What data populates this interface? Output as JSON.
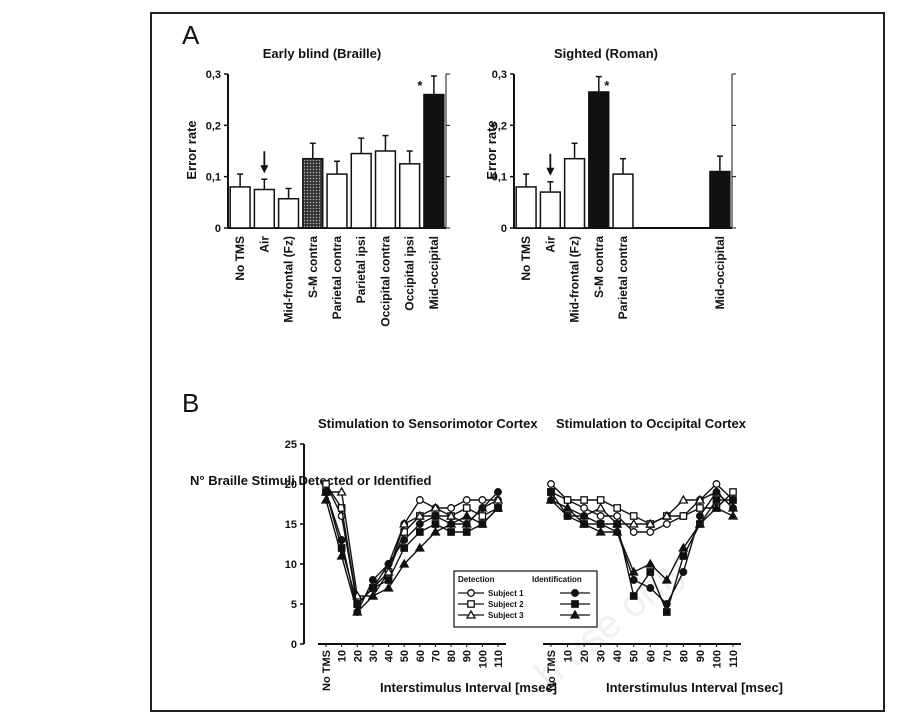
{
  "panels": {
    "A": "A",
    "B": "B"
  },
  "chart_data": [
    {
      "type": "bar",
      "title": "Early blind (Braille)",
      "ylabel": "Error rate",
      "ylim": [
        0,
        0.3
      ],
      "yticks": [
        "0",
        "0,1",
        "0,2",
        "0,3"
      ],
      "categories": [
        "No TMS",
        "Air",
        "Mid-frontal (Fz)",
        "S-M contra",
        "Parietal contra",
        "Parietal ipsi",
        "Occipital contra",
        "Occipital ipsi",
        "Mid-occipital"
      ],
      "values": [
        0.08,
        0.075,
        0.057,
        0.135,
        0.105,
        0.145,
        0.15,
        0.125,
        0.26
      ],
      "errors": [
        0.025,
        0.02,
        0.02,
        0.03,
        0.025,
        0.03,
        0.03,
        0.025,
        0.04
      ],
      "fill": [
        "white",
        "white",
        "white",
        "dotted",
        "white",
        "white",
        "white",
        "white",
        "black"
      ],
      "arrow_at": "Air",
      "significance": {
        "category": "Mid-occipital",
        "label": "*"
      }
    },
    {
      "type": "bar",
      "title": "Sighted (Roman)",
      "ylabel": "Error rate",
      "ylim": [
        0,
        0.3
      ],
      "yticks": [
        "0",
        "0,1",
        "0,2",
        "0,3"
      ],
      "categories": [
        "No TMS",
        "Air",
        "Mid-frontal (Fz)",
        "S-M contra",
        "Parietal contra",
        "",
        "",
        "",
        "Mid-occipital"
      ],
      "values": [
        0.08,
        0.07,
        0.135,
        0.265,
        0.105,
        null,
        null,
        null,
        0.11
      ],
      "errors": [
        0.025,
        0.02,
        0.03,
        0.03,
        0.03,
        null,
        null,
        null,
        0.03
      ],
      "fill": [
        "white",
        "white",
        "white",
        "black",
        "white",
        "none",
        "none",
        "none",
        "black"
      ],
      "arrow_at": "Air",
      "significance": {
        "category": "S-M contra",
        "label": "*"
      }
    },
    {
      "type": "line",
      "title": "Stimulation to Sensorimotor Cortex",
      "ylabel": "N° Braille Stimuli Detected or Identified",
      "xlabel": "Interstimulus Interval [msec]",
      "ylim": [
        0,
        25
      ],
      "yticks": [
        "0",
        "5",
        "10",
        "15",
        "20",
        "25"
      ],
      "x": [
        "No TMS",
        "10",
        "20",
        "30",
        "40",
        "50",
        "60",
        "70",
        "80",
        "90",
        "100",
        "110"
      ],
      "legend": {
        "detection": "Detection",
        "identification": "Identification"
      },
      "series": [
        {
          "name": "Subject 1",
          "task": "Detection",
          "marker": "circle-open",
          "values": [
            20,
            16,
            5,
            7,
            10,
            15,
            18,
            17,
            17,
            18,
            18,
            18
          ]
        },
        {
          "name": "Subject 2",
          "task": "Detection",
          "marker": "square-open",
          "values": [
            20,
            17,
            5,
            7,
            9,
            14,
            16,
            16,
            16,
            17,
            16,
            17
          ]
        },
        {
          "name": "Subject 3",
          "task": "Detection",
          "marker": "triangle-open",
          "values": [
            19,
            19,
            6,
            6,
            9,
            15,
            16,
            17,
            16,
            15,
            17,
            18
          ]
        },
        {
          "name": "Subject 1",
          "task": "Identification",
          "marker": "circle-filled",
          "values": [
            19,
            13,
            4,
            8,
            10,
            13,
            15,
            16,
            15,
            15,
            17,
            19
          ]
        },
        {
          "name": "Subject 2",
          "task": "Identification",
          "marker": "square-filled",
          "values": [
            19,
            12,
            5,
            7,
            8,
            12,
            14,
            15,
            14,
            14,
            15,
            17
          ]
        },
        {
          "name": "Subject 3",
          "task": "Identification",
          "marker": "triangle-filled",
          "values": [
            18,
            11,
            4,
            6,
            7,
            10,
            12,
            14,
            15,
            16,
            15,
            17
          ]
        }
      ]
    },
    {
      "type": "line",
      "title": "Stimulation to Occipital Cortex",
      "xlabel": "Interstimulus Interval [msec]",
      "ylim": [
        0,
        25
      ],
      "x": [
        "No TMS",
        "10",
        "20",
        "30",
        "40",
        "50",
        "60",
        "70",
        "80",
        "90",
        "100",
        "110"
      ],
      "series": [
        {
          "name": "Subject 1",
          "task": "Detection",
          "marker": "circle-open",
          "values": [
            20,
            18,
            17,
            16,
            16,
            14,
            14,
            15,
            16,
            18,
            20,
            18
          ]
        },
        {
          "name": "Subject 2",
          "task": "Detection",
          "marker": "square-open",
          "values": [
            19,
            18,
            18,
            18,
            17,
            16,
            15,
            16,
            16,
            17,
            17,
            19
          ]
        },
        {
          "name": "Subject 3",
          "task": "Detection",
          "marker": "triangle-open",
          "values": [
            18,
            17,
            16,
            17,
            15,
            15,
            15,
            16,
            18,
            18,
            19,
            17
          ]
        },
        {
          "name": "Subject 1",
          "task": "Identification",
          "marker": "circle-filled",
          "values": [
            18,
            16,
            16,
            15,
            14,
            8,
            7,
            5,
            9,
            16,
            19,
            17
          ]
        },
        {
          "name": "Subject 2",
          "task": "Identification",
          "marker": "square-filled",
          "values": [
            19,
            16,
            15,
            15,
            15,
            6,
            9,
            4,
            11,
            15,
            18,
            18
          ]
        },
        {
          "name": "Subject 3",
          "task": "Identification",
          "marker": "triangle-filled",
          "values": [
            18,
            17,
            15,
            14,
            14,
            9,
            10,
            8,
            12,
            15,
            17,
            16
          ]
        }
      ]
    }
  ]
}
